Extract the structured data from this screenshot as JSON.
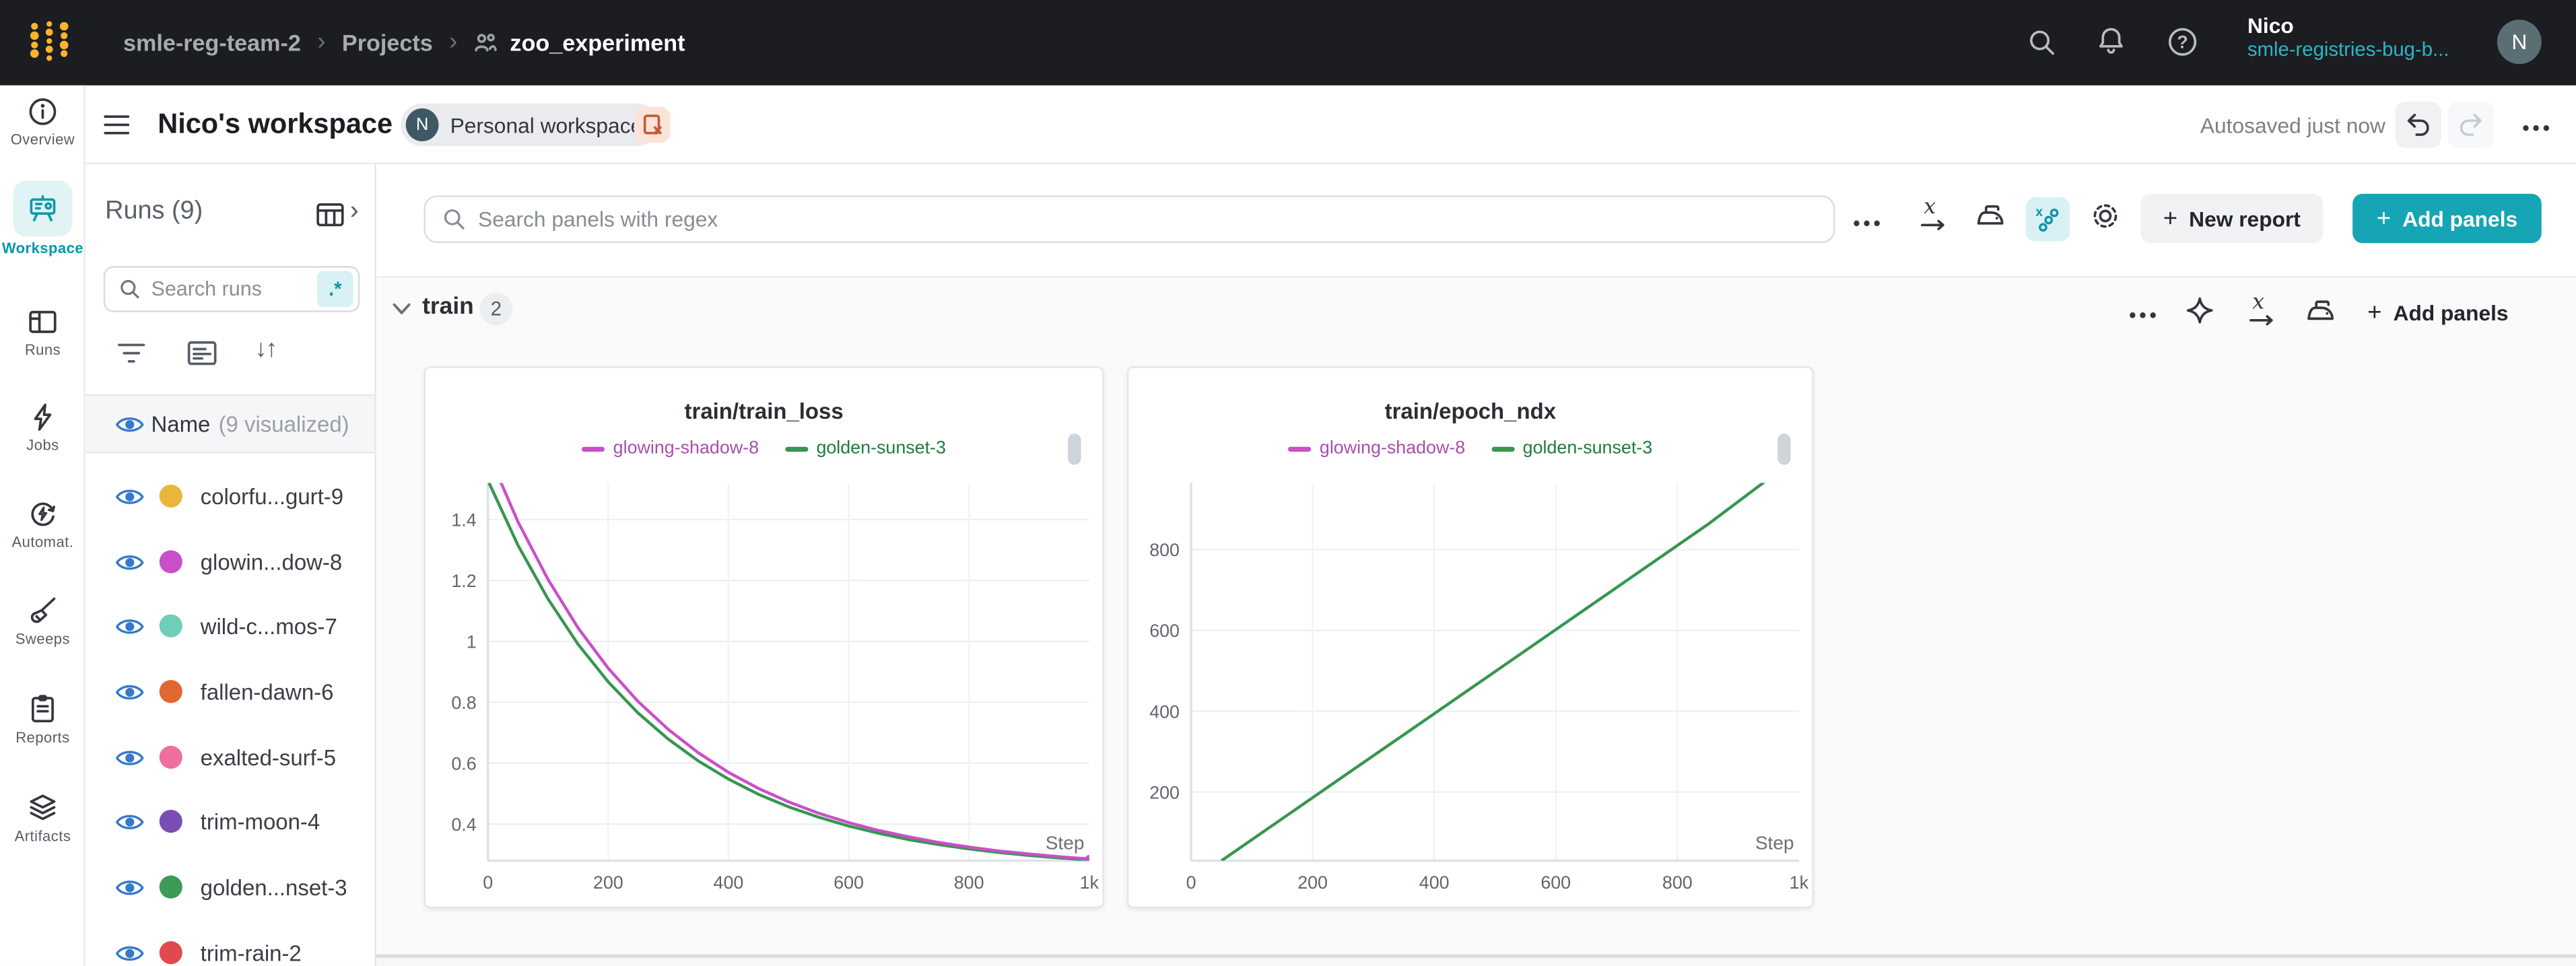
{
  "navbar": {
    "breadcrumb": {
      "team": "smle-reg-team-2",
      "section": "Projects",
      "project": "zoo_experiment"
    },
    "user": {
      "name": "Nico",
      "org": "smle-registries-bug-b...",
      "avatar_initial": "N"
    },
    "colors": {
      "bg": "#1b1d21",
      "teal_link": "#2cb5c8",
      "logo_yellow": "#fbb42c"
    }
  },
  "workspace_bar": {
    "title": "Nico's workspace",
    "badge_initial": "N",
    "badge_label": "Personal workspace",
    "autosave_status": "Autosaved just now"
  },
  "sidebar": {
    "items": [
      {
        "label": "Overview"
      },
      {
        "label": "Workspace",
        "active": true
      },
      {
        "label": "Runs"
      },
      {
        "label": "Jobs"
      },
      {
        "label": "Automat."
      },
      {
        "label": "Sweeps"
      },
      {
        "label": "Reports"
      },
      {
        "label": "Artifacts"
      }
    ]
  },
  "runs_panel": {
    "title": "Runs (9)",
    "search_placeholder": "Search runs",
    "regex_toggle": ".*",
    "header": {
      "name": "Name",
      "count": "(9 visualized)"
    },
    "rows": [
      {
        "name": "colorfu...gurt-9",
        "color": "#e9b63b"
      },
      {
        "name": "glowin...dow-8",
        "color": "#c94fc9"
      },
      {
        "name": "wild-c...mos-7",
        "color": "#70cdb9"
      },
      {
        "name": "fallen-dawn-6",
        "color": "#e0672f"
      },
      {
        "name": "exalted-surf-5",
        "color": "#ee6e9e"
      },
      {
        "name": "trim-moon-4",
        "color": "#7a4db4"
      },
      {
        "name": "golden...nset-3",
        "color": "#3d9a57"
      },
      {
        "name": "trim-rain-2",
        "color": "#e04a4f"
      }
    ]
  },
  "toolbar": {
    "search_placeholder": "Search panels with regex",
    "new_report_label": "New report",
    "add_panels_label": "Add panels",
    "accent": "#16a5b4"
  },
  "section": {
    "name": "train",
    "count": "2",
    "add_panels_label": "Add panels"
  },
  "icons": {
    "sort": "↓↑",
    "dots": "•••",
    "plus": "+",
    "chevron_right": "›",
    "breadcrumb_sep": "›",
    "help": "?"
  },
  "chart_data": [
    {
      "type": "line",
      "title": "train/train_loss",
      "xlabel": "Step",
      "xlim": [
        0,
        1000
      ],
      "ylim": [
        0.28,
        1.52
      ],
      "x_ticks": [
        {
          "v": 0,
          "label": "0"
        },
        {
          "v": 200,
          "label": "200"
        },
        {
          "v": 400,
          "label": "400"
        },
        {
          "v": 600,
          "label": "600"
        },
        {
          "v": 800,
          "label": "800"
        },
        {
          "v": 1000,
          "label": "1k"
        }
      ],
      "y_ticks": [
        0.4,
        0.6,
        0.8,
        1,
        1.2,
        1.4
      ],
      "x": [
        0,
        50,
        100,
        150,
        200,
        250,
        300,
        350,
        400,
        450,
        500,
        550,
        600,
        650,
        700,
        750,
        800,
        850,
        900,
        950,
        1000
      ],
      "series": [
        {
          "name": "glowing-shadow-8",
          "color": "#c94fc9",
          "label_color": "#a94fa9",
          "values": [
            1.62,
            1.392,
            1.203,
            1.044,
            0.912,
            0.802,
            0.711,
            0.634,
            0.57,
            0.517,
            0.473,
            0.436,
            0.405,
            0.379,
            0.358,
            0.34,
            0.325,
            0.312,
            0.302,
            0.293,
            0.286
          ]
        },
        {
          "name": "golden-sunset-3",
          "color": "#37964f",
          "label_color": "#1f7c3c",
          "values": [
            1.528,
            1.315,
            1.139,
            0.99,
            0.867,
            0.764,
            0.679,
            0.607,
            0.548,
            0.498,
            0.457,
            0.423,
            0.394,
            0.37,
            0.349,
            0.333,
            0.319,
            0.307,
            0.297,
            0.289,
            0.282
          ]
        }
      ]
    },
    {
      "type": "line",
      "title": "train/epoch_ndx",
      "xlabel": "Step",
      "xlim": [
        0,
        1000
      ],
      "ylim": [
        30,
        965
      ],
      "x_ticks": [
        {
          "v": 0,
          "label": "0"
        },
        {
          "v": 200,
          "label": "200"
        },
        {
          "v": 400,
          "label": "400"
        },
        {
          "v": 600,
          "label": "600"
        },
        {
          "v": 800,
          "label": "800"
        },
        {
          "v": 1000,
          "label": "1k"
        }
      ],
      "y_ticks": [
        200,
        400,
        600,
        800
      ],
      "x": [
        50,
        150,
        250,
        350,
        450,
        550,
        650,
        750,
        850,
        950
      ],
      "series": [
        {
          "name": "glowing-shadow-8",
          "color": "#c94fc9",
          "label_color": "#a94fa9",
          "values": []
        },
        {
          "name": "golden-sunset-3",
          "color": "#37964f",
          "label_color": "#1f7c3c",
          "values": [
            30,
            134,
            238,
            342,
            446,
            550,
            654,
            758,
            862,
            975
          ]
        }
      ]
    }
  ]
}
